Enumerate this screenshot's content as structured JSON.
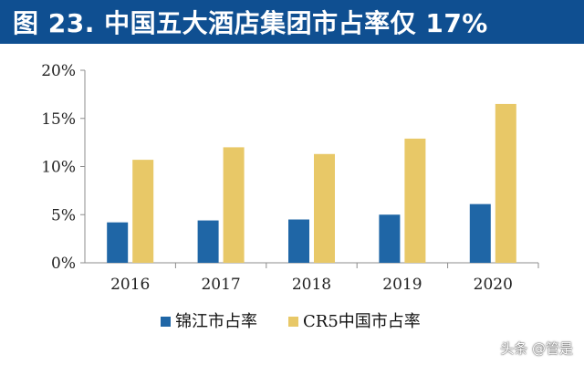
{
  "title": "图 23. 中国五大酒店集团市占率仅 17%",
  "watermark": "头条 @管是",
  "colors": {
    "title_bg": "#0f4f91",
    "series_1": "#1f66a6",
    "series_2": "#e8c867"
  },
  "chart_data": {
    "type": "bar",
    "categories": [
      "2016",
      "2017",
      "2018",
      "2019",
      "2020"
    ],
    "series": [
      {
        "name": "锦江市占率",
        "values": [
          4.2,
          4.4,
          4.5,
          5.0,
          6.1
        ]
      },
      {
        "name": "CR5中国市占率",
        "values": [
          10.7,
          12.0,
          11.3,
          12.9,
          16.5
        ]
      }
    ],
    "y_ticks": [
      "0%",
      "5%",
      "10%",
      "15%",
      "20%"
    ],
    "ylim": [
      0,
      20
    ],
    "legend_position": "bottom",
    "grid": false
  }
}
